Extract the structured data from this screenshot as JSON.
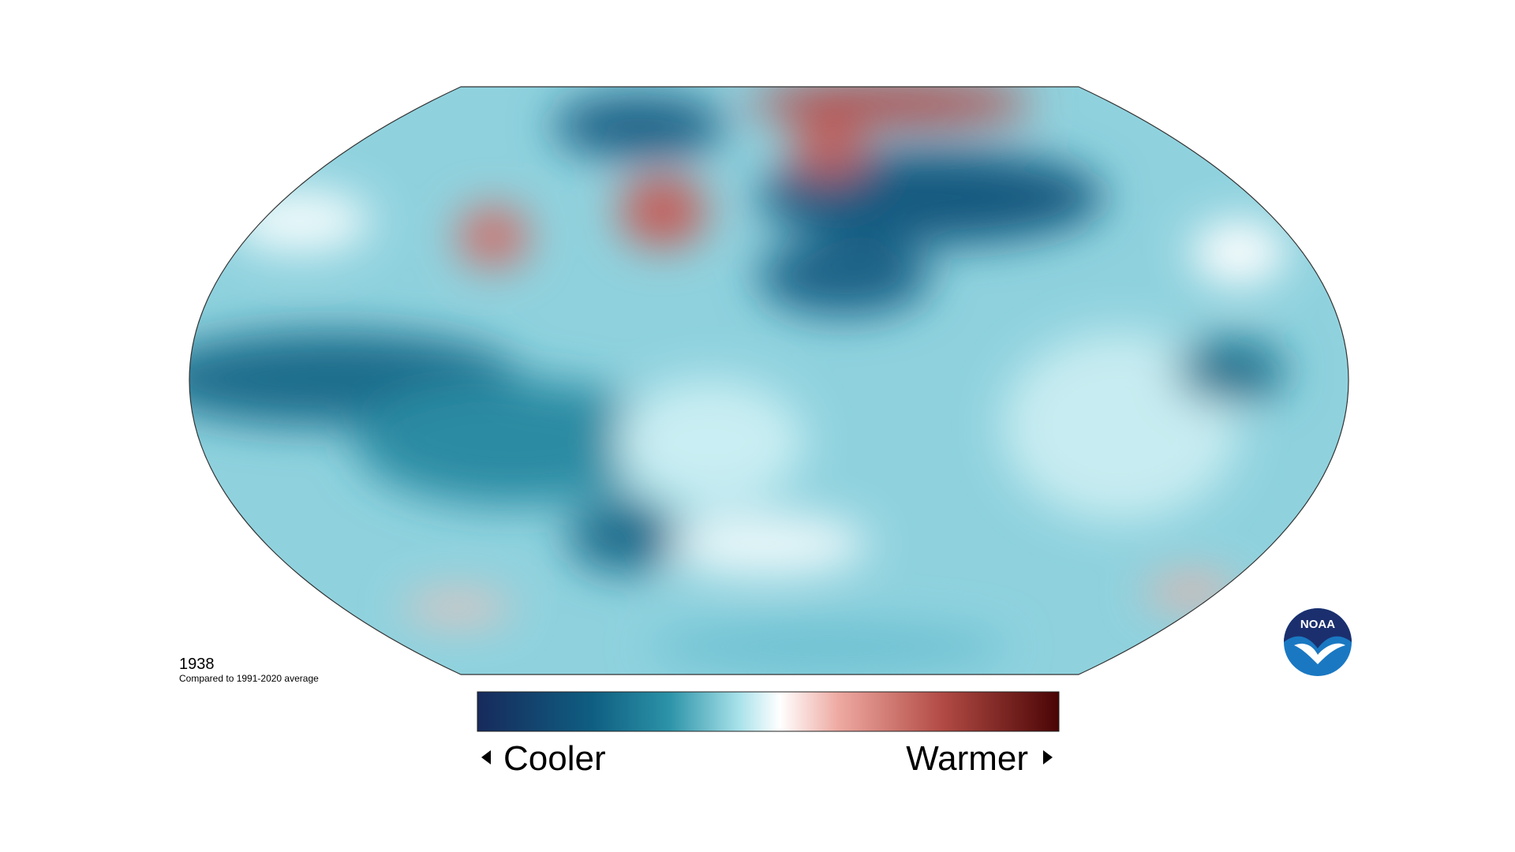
{
  "map": {
    "year": "1938",
    "caption": "Compared to 1991-2020 average",
    "legend": {
      "low_label": "Cooler",
      "high_label": "Warmer"
    },
    "logo": "NOAA"
  }
}
